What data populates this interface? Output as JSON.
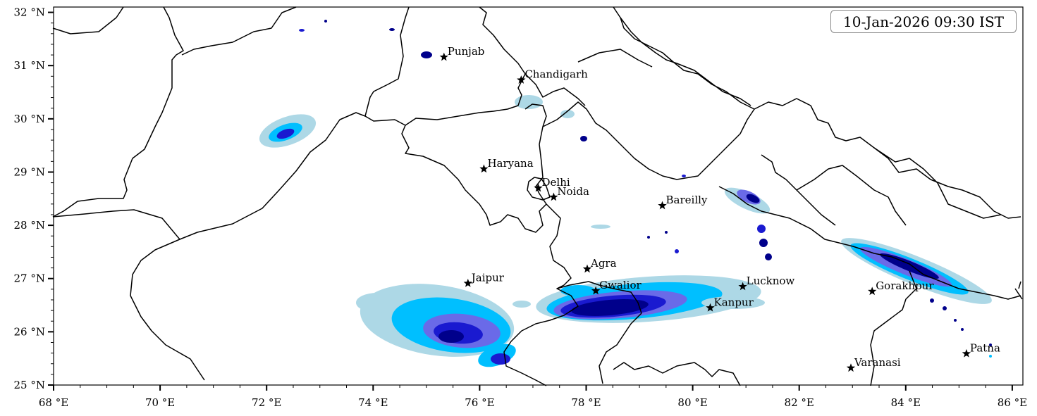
{
  "timestamp": "10-Jan-2026 09:30 IST",
  "colors": {
    "level1": "#add8e6",
    "level2": "#00bfff",
    "level3": "#6a6ae8",
    "level4": "#1a1ad0",
    "level5": "#00008b",
    "border": "#000000",
    "star": "#000000"
  },
  "axes": {
    "lon_range": [
      68,
      86.2
    ],
    "lat_range": [
      25,
      32.1
    ],
    "x_ticks": [
      {
        "value": 68,
        "label": "68 °E"
      },
      {
        "value": 70,
        "label": "70 °E"
      },
      {
        "value": 72,
        "label": "72 °E"
      },
      {
        "value": 74,
        "label": "74 °E"
      },
      {
        "value": 76,
        "label": "76 °E"
      },
      {
        "value": 78,
        "label": "78 °E"
      },
      {
        "value": 80,
        "label": "80 °E"
      },
      {
        "value": 82,
        "label": "82 °E"
      },
      {
        "value": 84,
        "label": "84 °E"
      },
      {
        "value": 86,
        "label": "86 °E"
      }
    ],
    "y_ticks": [
      {
        "value": 25,
        "label": "25 °N"
      },
      {
        "value": 26,
        "label": "26 °N"
      },
      {
        "value": 27,
        "label": "27 °N"
      },
      {
        "value": 28,
        "label": "28 °N"
      },
      {
        "value": 29,
        "label": "29 °N"
      },
      {
        "value": 30,
        "label": "30 °N"
      },
      {
        "value": 31,
        "label": "31 °N"
      },
      {
        "value": 32,
        "label": "32 °N"
      }
    ]
  },
  "cities": [
    {
      "name": "Punjab",
      "lon": 75.33,
      "lat": 31.16
    },
    {
      "name": "Chandigarh",
      "lon": 76.78,
      "lat": 30.73
    },
    {
      "name": "Haryana",
      "lon": 76.08,
      "lat": 29.06
    },
    {
      "name": "Delhi",
      "lon": 77.1,
      "lat": 28.7
    },
    {
      "name": "Noida",
      "lon": 77.39,
      "lat": 28.53
    },
    {
      "name": "Bareilly",
      "lon": 79.43,
      "lat": 28.37
    },
    {
      "name": "Agra",
      "lon": 78.02,
      "lat": 27.18
    },
    {
      "name": "Jaipur",
      "lon": 75.78,
      "lat": 26.91
    },
    {
      "name": "Gwalior",
      "lon": 78.18,
      "lat": 26.77
    },
    {
      "name": "Lucknow",
      "lon": 80.94,
      "lat": 26.85
    },
    {
      "name": "Kanpur",
      "lon": 80.33,
      "lat": 26.45
    },
    {
      "name": "Gorakhpur",
      "lon": 83.37,
      "lat": 26.76
    },
    {
      "name": "Varanasi",
      "lon": 82.97,
      "lat": 25.32
    },
    {
      "name": "Patna",
      "lon": 85.14,
      "lat": 25.59
    }
  ]
}
